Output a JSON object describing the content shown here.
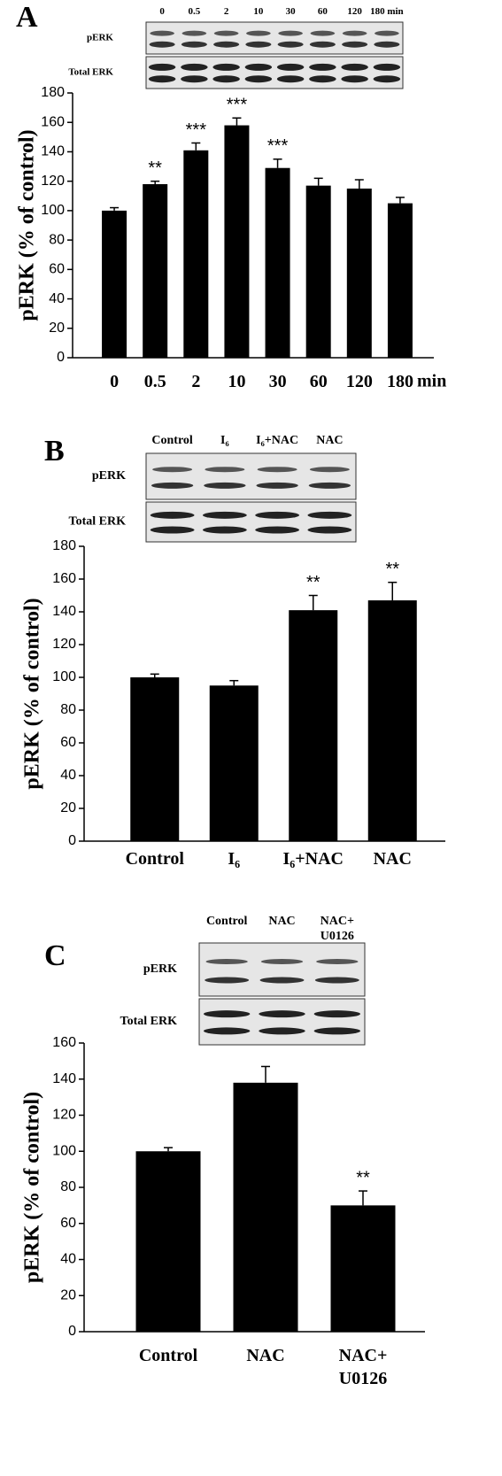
{
  "chart_data": [
    {
      "type": "bar",
      "panel": "A",
      "y_label": "pERK (% of control)",
      "categories": [
        "0",
        "0.5",
        "2",
        "10",
        "30",
        "60",
        "120",
        "180"
      ],
      "x_unit": "min",
      "values": [
        100,
        118,
        141,
        158,
        129,
        117,
        115,
        105
      ],
      "errors": [
        2,
        2,
        5,
        5,
        6,
        5,
        6,
        4
      ],
      "significance": [
        null,
        "**",
        "***",
        "***",
        "***",
        null,
        null,
        null
      ],
      "color": "#000000",
      "ylim": [
        0,
        180
      ],
      "yticks": [
        0,
        20,
        40,
        60,
        80,
        100,
        120,
        140,
        160,
        180
      ],
      "blot": {
        "lanes": [
          "0",
          "0.5",
          "2",
          "10",
          "30",
          "60",
          "120",
          "180 min"
        ],
        "rows": [
          "pERK",
          "Total ERK"
        ]
      }
    },
    {
      "type": "bar",
      "panel": "B",
      "y_label": "pERK (% of control)",
      "categories": [
        "Control",
        "I₆",
        "I₆+NAC",
        "NAC"
      ],
      "values": [
        100,
        95,
        141,
        147
      ],
      "errors": [
        2,
        3,
        9,
        11
      ],
      "significance": [
        null,
        null,
        "**",
        "**"
      ],
      "color": "#000000",
      "ylim": [
        0,
        180
      ],
      "yticks": [
        0,
        20,
        40,
        60,
        80,
        100,
        120,
        140,
        160,
        180
      ],
      "blot": {
        "lanes": [
          "Control",
          "I₆",
          "I₆+NAC",
          "NAC"
        ],
        "rows": [
          "pERK",
          "Total ERK"
        ]
      }
    },
    {
      "type": "bar",
      "panel": "C",
      "y_label": "pERK (% of control)",
      "categories": [
        "Control",
        "NAC",
        "NAC+ U0126"
      ],
      "values": [
        100,
        138,
        70
      ],
      "errors": [
        2,
        9,
        8
      ],
      "significance": [
        null,
        null,
        "**"
      ],
      "color": "#000000",
      "ylim": [
        0,
        160
      ],
      "yticks": [
        0,
        20,
        40,
        60,
        80,
        100,
        120,
        140,
        160
      ],
      "blot": {
        "lanes": [
          "Control",
          "NAC",
          "NAC+ U0126"
        ],
        "rows": [
          "pERK",
          "Total ERK"
        ]
      }
    }
  ]
}
